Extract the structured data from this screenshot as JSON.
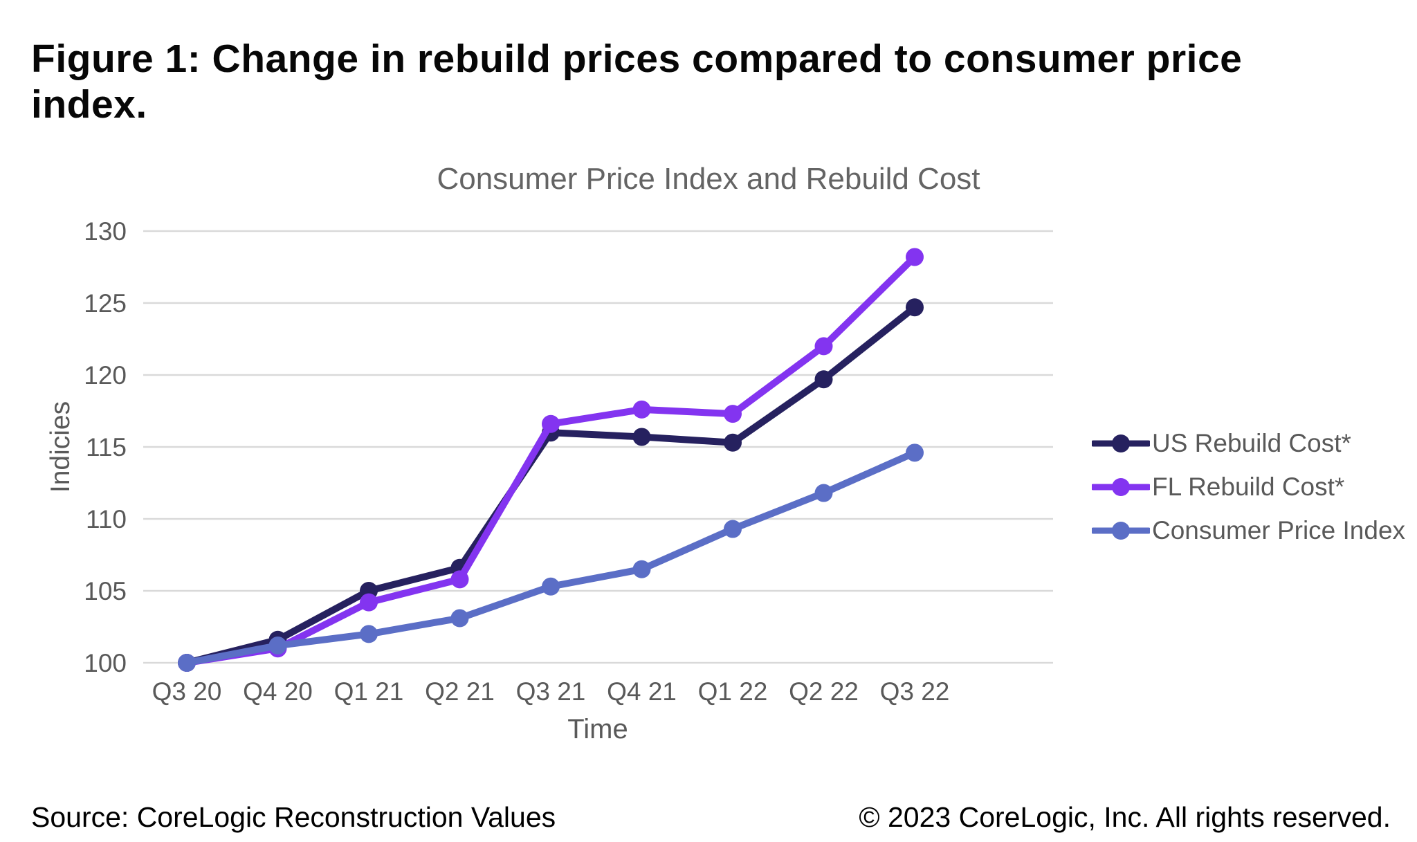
{
  "figure": {
    "title": "Figure 1: Change in rebuild prices compared to consumer price index."
  },
  "chart_data": {
    "type": "line",
    "title": "Consumer Price Index and Rebuild Cost",
    "xlabel": "Time",
    "ylabel": "Indicies",
    "categories": [
      "Q3 20",
      "Q4 20",
      "Q1 21",
      "Q2 21",
      "Q3 21",
      "Q4 21",
      "Q1 22",
      "Q2 22",
      "Q3 22"
    ],
    "series": [
      {
        "name": "US Rebuild Cost*",
        "color": "#26215f",
        "values": [
          100,
          101.6,
          105.0,
          106.6,
          116.0,
          115.7,
          115.3,
          119.7,
          124.7
        ]
      },
      {
        "name": "FL Rebuild Cost*",
        "color": "#8334f0",
        "values": [
          100,
          101.0,
          104.2,
          105.8,
          116.6,
          117.6,
          117.3,
          122.0,
          128.2
        ]
      },
      {
        "name": "Consumer Price Index",
        "color": "#5b6ec6",
        "values": [
          100,
          101.2,
          102.0,
          103.1,
          105.3,
          106.5,
          109.3,
          111.8,
          114.6
        ]
      }
    ],
    "ylim": [
      100,
      130
    ],
    "yticks": [
      100,
      105,
      110,
      115,
      120,
      125,
      130
    ],
    "grid": true,
    "legend_position": "right",
    "marker": "circle",
    "style": {
      "axis_text_color": "#595959",
      "title_text_color": "#646464",
      "gridline_color": "#d9d9d9",
      "line_width": 10,
      "marker_radius": 13
    }
  },
  "footer": {
    "source": "Source: CoreLogic Reconstruction Values",
    "copyright": "© 2023 CoreLogic, Inc. All rights reserved."
  }
}
